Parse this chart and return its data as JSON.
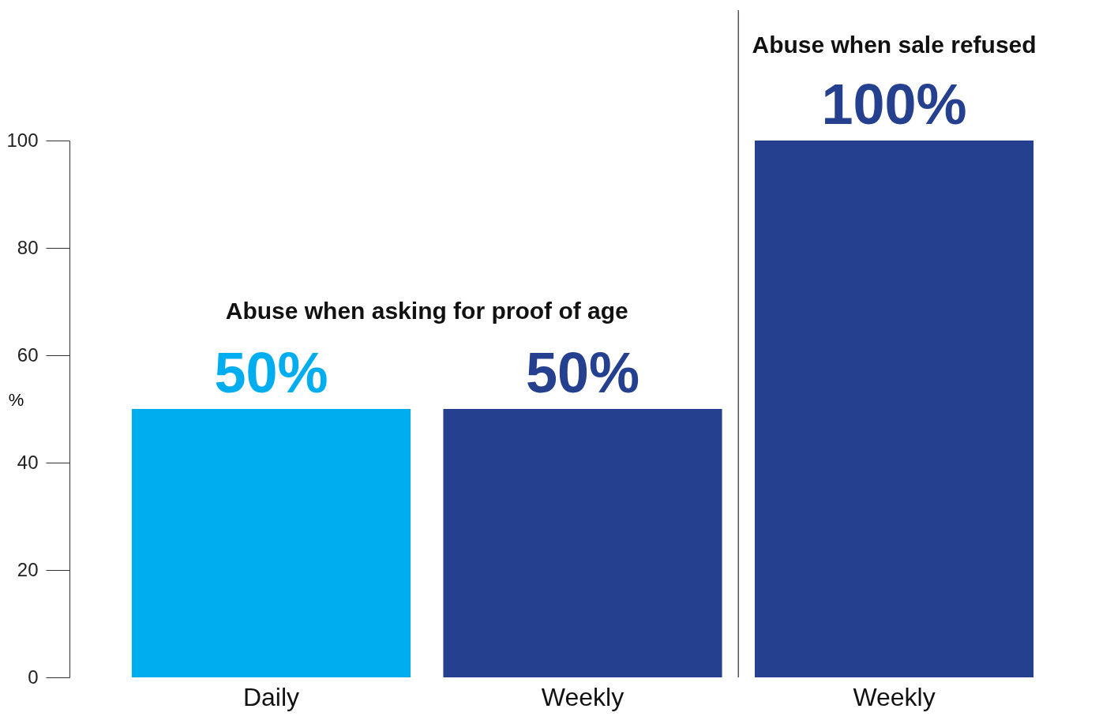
{
  "chart_data": {
    "type": "bar",
    "categories": [
      "Daily",
      "Weekly",
      "Weekly"
    ],
    "values": [
      50,
      50,
      100
    ],
    "colors": [
      "#00aeef",
      "#25408f",
      "#25408f"
    ],
    "value_labels": [
      "50%",
      "50%",
      "100%"
    ],
    "ylabel": "%",
    "ylim": [
      0,
      100
    ],
    "yticks": [
      0,
      20,
      40,
      60,
      80,
      100
    ],
    "grid": false,
    "annotations": [
      "Abuse when asking for proof of age",
      "Abuse when sale refused"
    ]
  }
}
